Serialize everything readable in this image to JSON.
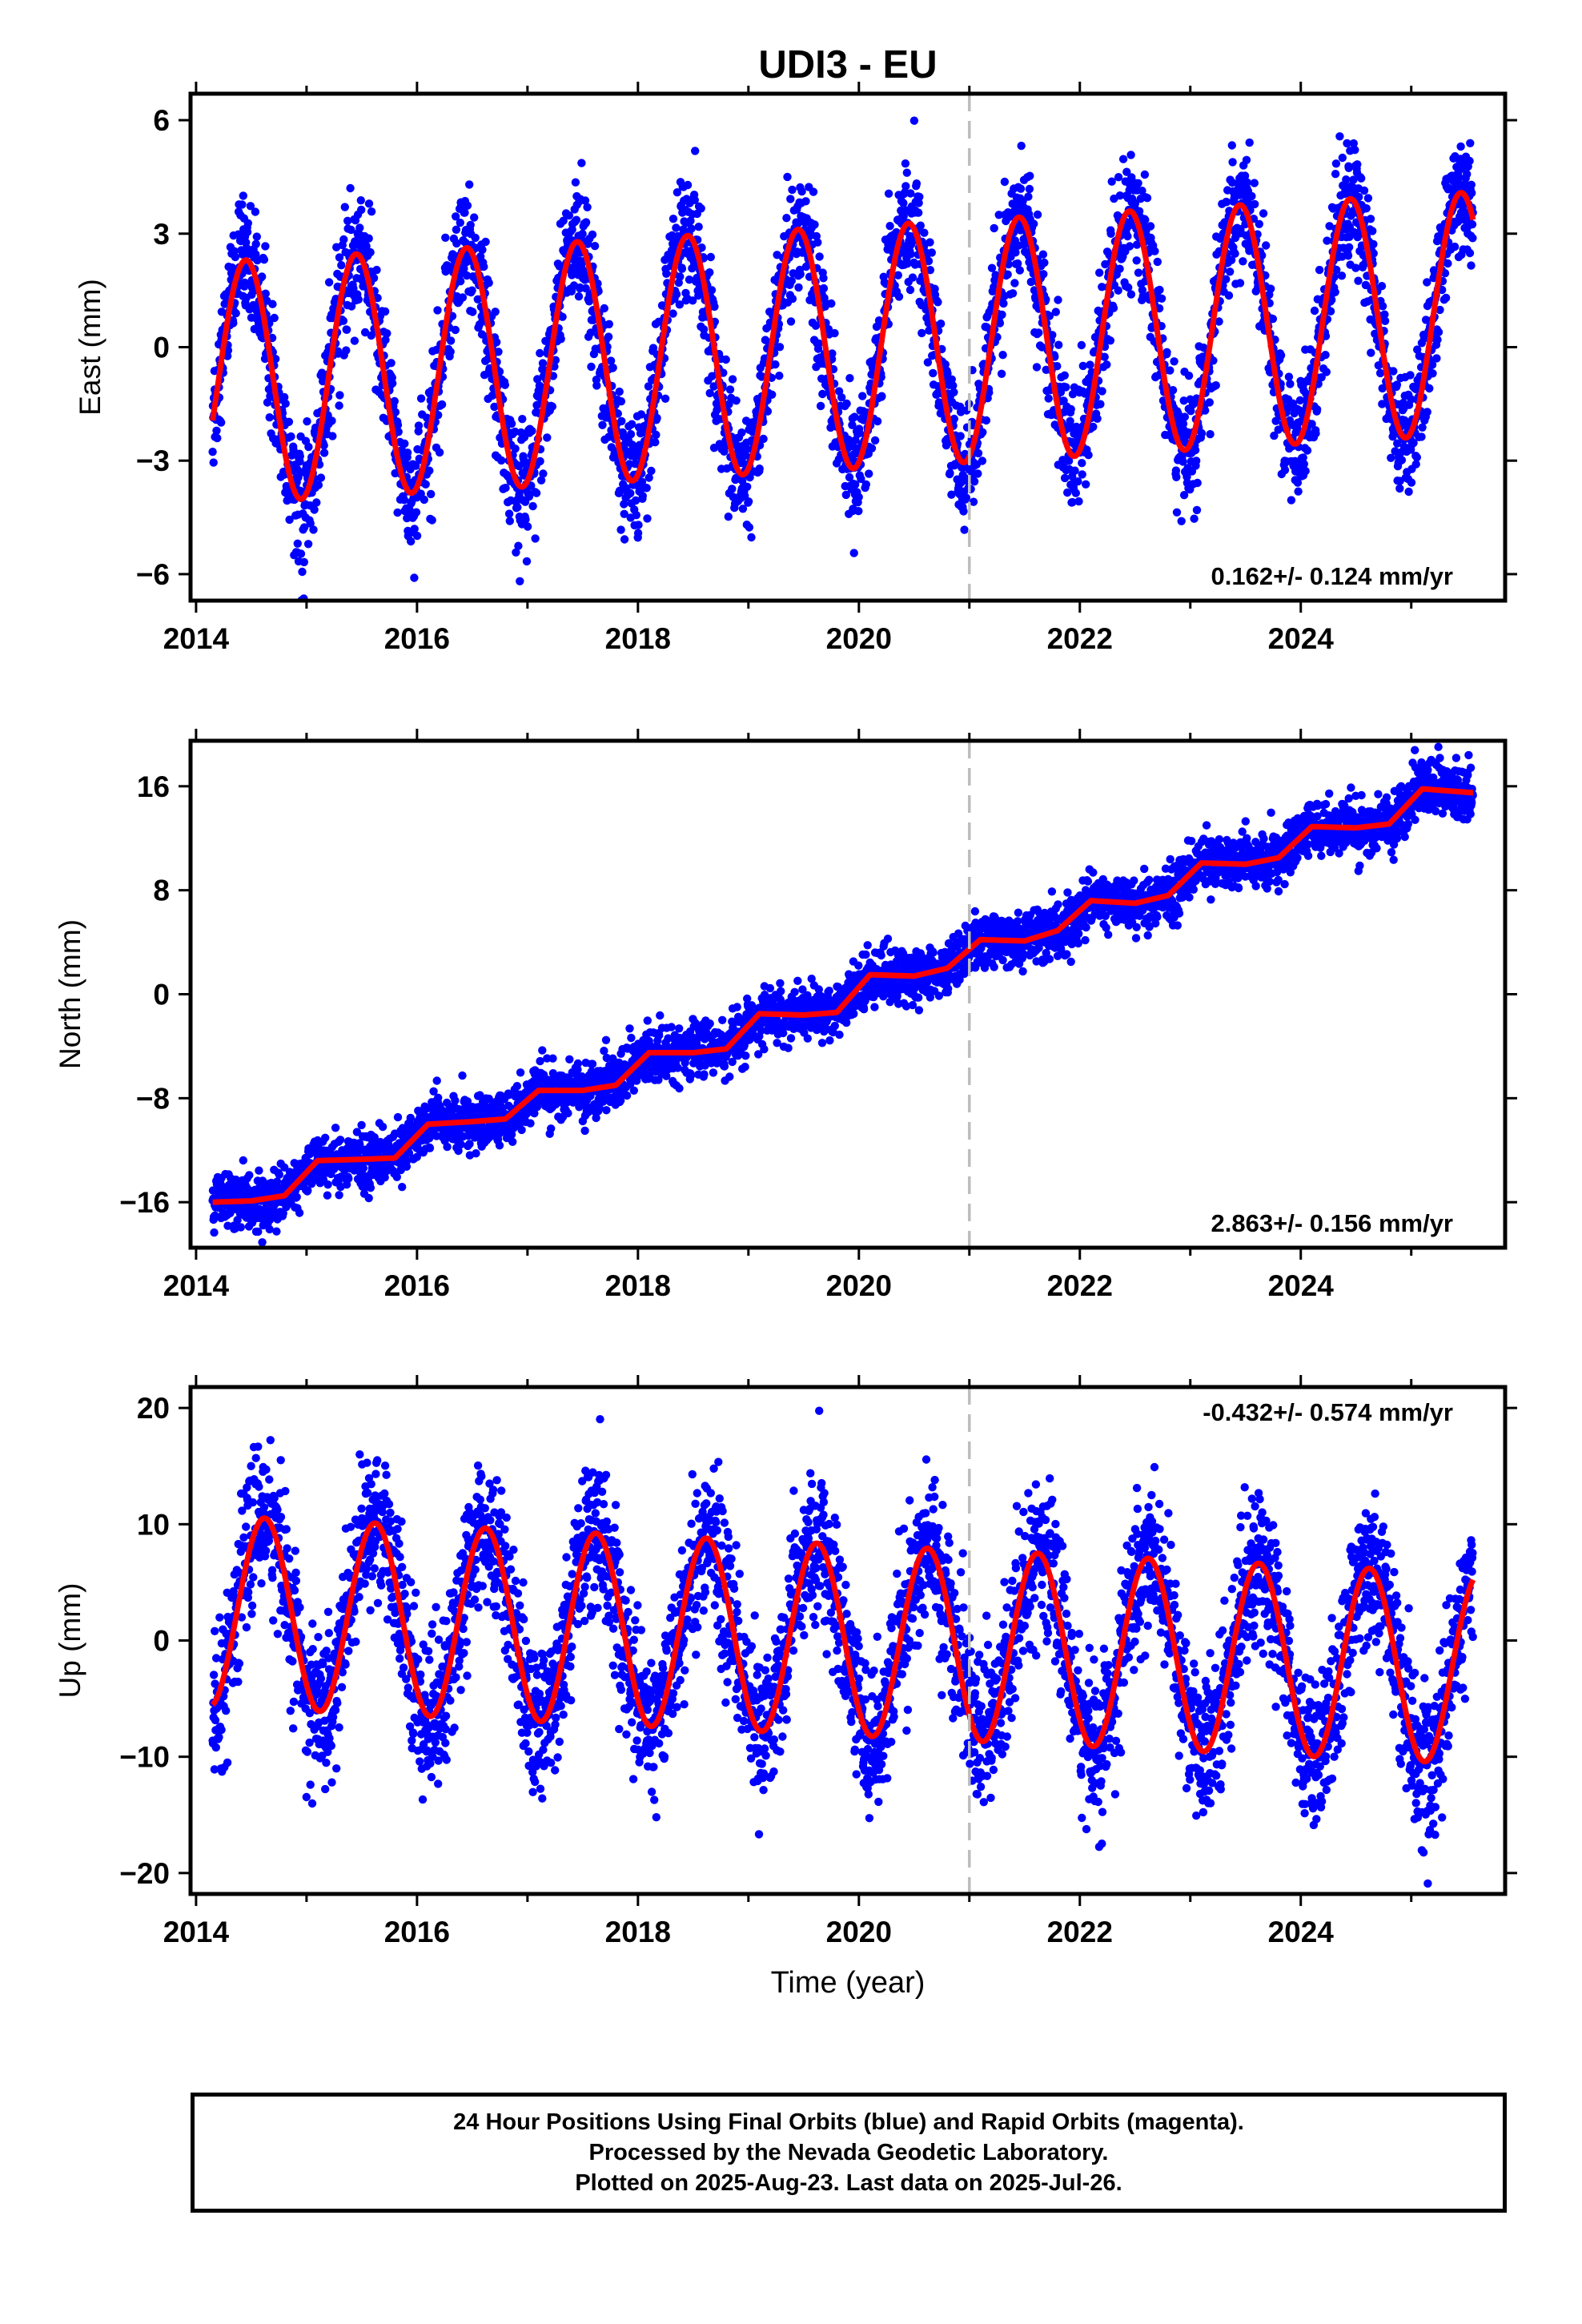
{
  "chart_data": [
    {
      "type": "scatter",
      "panel": "east",
      "title": "UDI3 - EU",
      "ylabel": "East (mm)",
      "xlabel": "",
      "xlim": [
        2013.95,
        2025.85
      ],
      "ylim": [
        -6.7,
        6.7
      ],
      "xticks": [
        2014,
        2016,
        2018,
        2020,
        2022,
        2024
      ],
      "yticks": [
        -6,
        -3,
        0,
        3,
        6
      ],
      "ytick_labels": [
        "−6",
        "−3",
        "0",
        "3",
        "6"
      ],
      "grid": false,
      "rate_label": "0.162+/- 0.124 mm/yr",
      "rate_position": "bottom-right",
      "dashed_epoch": 2021.0,
      "series": [
        {
          "type": "scatter",
          "color": "#0000ff",
          "date_range": [
            2014.15,
            2025.56
          ],
          "trend_mm_per_yr": 0.162,
          "seasonal_amp_mm": 3.2,
          "peak_year_fraction": 0.45,
          "noise_mm": 0.8,
          "value_range": [
            -6.5,
            6.5
          ]
        },
        {
          "type": "line",
          "color": "#ff0000",
          "x_start": 2014.15,
          "x_end": 2025.56,
          "trend_mm_per_yr": 0.162,
          "seasonal_amp_mm": 3.2,
          "peak_year_fraction": 0.45
        }
      ]
    },
    {
      "type": "scatter",
      "panel": "north",
      "ylabel": "North (mm)",
      "xlabel": "",
      "xlim": [
        2013.95,
        2025.85
      ],
      "ylim": [
        -19.5,
        19.5
      ],
      "xticks": [
        2014,
        2016,
        2018,
        2020,
        2022,
        2024
      ],
      "yticks": [
        -16,
        -8,
        0,
        8,
        16
      ],
      "ytick_labels": [
        "−16",
        "−8",
        "0",
        "8",
        "16"
      ],
      "grid": false,
      "rate_label": "2.863+/- 0.156 mm/yr",
      "rate_position": "bottom-right",
      "dashed_epoch": 2021.0,
      "series": [
        {
          "type": "scatter",
          "color": "#0000ff",
          "date_range": [
            2014.15,
            2025.56
          ],
          "value_range": [
            -18.5,
            18.5
          ],
          "noise_mm": 1.0
        },
        {
          "type": "line",
          "color": "#ff0000",
          "x": [
            2014.15,
            2014.5,
            2014.8,
            2015.1,
            2015.5,
            2015.8,
            2016.1,
            2016.5,
            2016.8,
            2017.1,
            2017.5,
            2017.8,
            2018.1,
            2018.5,
            2018.8,
            2019.1,
            2019.5,
            2019.8,
            2020.1,
            2020.5,
            2020.8,
            2021.1,
            2021.5,
            2021.8,
            2022.1,
            2022.5,
            2022.8,
            2023.1,
            2023.5,
            2023.8,
            2024.1,
            2024.5,
            2024.8,
            2025.1,
            2025.56
          ],
          "y": [
            -16,
            -15.9,
            -15.5,
            -12.8,
            -12.7,
            -12.6,
            -10,
            -9.8,
            -9.6,
            -7.4,
            -7.4,
            -7,
            -4.5,
            -4.5,
            -4.2,
            -1.5,
            -1.6,
            -1.4,
            1.5,
            1.4,
            2.0,
            4.2,
            4.1,
            4.9,
            7.2,
            7.0,
            7.6,
            10.1,
            10.0,
            10.5,
            12.9,
            12.8,
            13.1,
            15.8,
            15.5
          ]
        }
      ]
    },
    {
      "type": "scatter",
      "panel": "up",
      "ylabel": "Up (mm)",
      "xlabel": "Time (year)",
      "xlim": [
        2013.95,
        2025.85
      ],
      "ylim": [
        -21.8,
        21.8
      ],
      "xticks": [
        2014,
        2016,
        2018,
        2020,
        2022,
        2024
      ],
      "yticks": [
        -20,
        -10,
        0,
        10,
        20
      ],
      "ytick_labels": [
        "−20",
        "−10",
        "0",
        "10",
        "20"
      ],
      "grid": false,
      "rate_label": "-0.432+/- 0.574 mm/yr",
      "rate_position": "top-right",
      "dashed_epoch": 2021.0,
      "series": [
        {
          "type": "scatter",
          "color": "#0000ff",
          "date_range": [
            2014.15,
            2025.56
          ],
          "trend_mm_per_yr": -0.432,
          "seasonal_amp_mm": 8.2,
          "peak_year_fraction": 0.62,
          "noise_mm": 3.2,
          "value_range": [
            -21,
            21
          ]
        },
        {
          "type": "line",
          "color": "#ff0000",
          "x_start": 2014.15,
          "x_end": 2025.56,
          "trend_mm_per_yr": -0.432,
          "seasonal_amp_mm": 8.2,
          "peak_year_fraction": 0.62
        }
      ]
    }
  ],
  "footer": {
    "line1": "24 Hour Positions Using Final Orbits (blue) and Rapid Orbits (magenta).",
    "line2": "Processed by the Nevada Geodetic Laboratory.",
    "line3": "Plotted on 2025-Aug-23. Last data on 2025-Jul-26."
  }
}
